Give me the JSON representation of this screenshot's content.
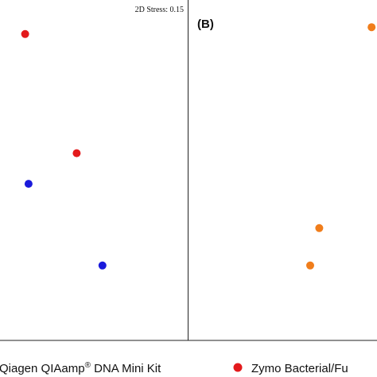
{
  "chart_data": {
    "type": "scatter",
    "panels": [
      {
        "label": "",
        "annotation": "2D Stress: 0.15",
        "points": [
          {
            "series": "Zymo Bacterial/Fu",
            "x": 0.1,
            "y": 0.9
          },
          {
            "series": "Zymo Bacterial/Fu",
            "x": 0.4,
            "y": 0.55
          },
          {
            "series": "Qiagen QIAamp DNA Mini Kit",
            "x": 0.12,
            "y": 0.46
          },
          {
            "series": "Qiagen QIAamp DNA Mini Kit",
            "x": 0.55,
            "y": 0.22
          }
        ]
      },
      {
        "label": "(B)",
        "annotation": "",
        "points": [
          {
            "series": "",
            "x": 0.97,
            "y": 0.92
          },
          {
            "series": "",
            "x": 0.68,
            "y": 0.33
          },
          {
            "series": "",
            "x": 0.63,
            "y": 0.22
          }
        ]
      }
    ],
    "legend": {
      "placement": "bottom",
      "items": [
        {
          "name": "Qiagen QIAamp",
          "sup": "®",
          "tail": " DNA Mini Kit",
          "color": "#1a1adb"
        },
        {
          "name": "Zymo Bacterial/Fu",
          "sup": "",
          "tail": "",
          "color": "#e31a1c"
        }
      ]
    },
    "colors": {
      "zymo": "#e31a1c",
      "qiagen": "#1a1adb",
      "third": "#f07d1b"
    }
  }
}
